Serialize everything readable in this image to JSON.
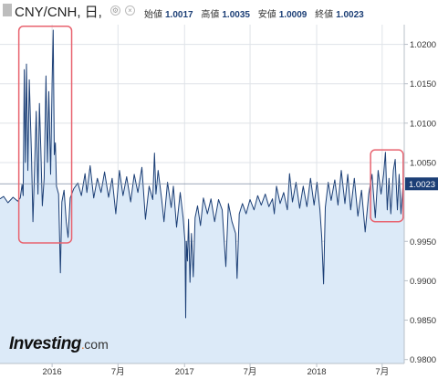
{
  "header": {
    "title": "CNY/CNH, 日,",
    "open_label": "始値",
    "open_value": "1.0017",
    "high_label": "高値",
    "high_value": "1.0035",
    "low_label": "安値",
    "low_value": "1.0009",
    "close_label": "終値",
    "close_value": "1.0023",
    "settings_glyph": "⚙",
    "close_glyph": "×"
  },
  "logo": {
    "brand": "Investing",
    "domain": "com"
  },
  "colors": {
    "line": "#1c3f76",
    "area": "#dceaf8",
    "highlight": "#e8636f",
    "grid": "#dfe3e8",
    "last_price_bg": "#1c3f76"
  },
  "chart_data": {
    "type": "area",
    "title": "CNY/CNH, 日,",
    "xlabel": "",
    "ylabel": "",
    "x_tick_labels": [
      "2016",
      "7月",
      "2017",
      "7月",
      "2018",
      "7月"
    ],
    "y_tick_labels": [
      "1.0200",
      "1.0150",
      "1.0100",
      "1.0050",
      "0.9950",
      "0.9900",
      "0.9850",
      "0.9800"
    ],
    "ylim": [
      0.9795,
      1.0225
    ],
    "xlim": [
      "2015-08-10",
      "2018-08-31"
    ],
    "last_price": "1.0023",
    "grid": true,
    "legend": "none",
    "series": [
      {
        "values": [
          [
            "2015-08-10",
            1.0004
          ],
          [
            "2015-08-20",
            1.0007
          ],
          [
            "2015-09-01",
            0.9999
          ],
          [
            "2015-09-15",
            1.0006
          ],
          [
            "2015-09-28",
            1.0001
          ],
          [
            "2015-10-05",
            1.0005
          ],
          [
            "2015-10-10",
            1.0022
          ],
          [
            "2015-10-13",
            1.0008
          ],
          [
            "2015-10-16",
            1.0168
          ],
          [
            "2015-10-19",
            1.005
          ],
          [
            "2015-10-22",
            1.0175
          ],
          [
            "2015-10-26",
            1.004
          ],
          [
            "2015-10-30",
            1.0155
          ],
          [
            "2015-11-05",
            1.006
          ],
          [
            "2015-11-09",
            0.9975
          ],
          [
            "2015-11-13",
            1.0035
          ],
          [
            "2015-11-18",
            1.0115
          ],
          [
            "2015-11-23",
            1.001
          ],
          [
            "2015-11-27",
            1.0125
          ],
          [
            "2015-12-01",
            1.0065
          ],
          [
            "2015-12-05",
            0.9995
          ],
          [
            "2015-12-10",
            1.003
          ],
          [
            "2015-12-15",
            1.016
          ],
          [
            "2015-12-19",
            1.005
          ],
          [
            "2015-12-23",
            1.014
          ],
          [
            "2015-12-28",
            1.0035
          ],
          [
            "2016-01-01",
            1.015
          ],
          [
            "2016-01-04",
            1.0218
          ],
          [
            "2016-01-07",
            1.006
          ],
          [
            "2016-01-10",
            1.0075
          ],
          [
            "2016-01-13",
            1.002
          ],
          [
            "2016-01-19",
            1.001
          ],
          [
            "2016-01-24",
            0.991
          ],
          [
            "2016-01-28",
            1.0
          ],
          [
            "2016-02-03",
            1.0015
          ],
          [
            "2016-02-09",
            0.9975
          ],
          [
            "2016-02-14",
            0.9955
          ],
          [
            "2016-02-20",
            1.0005
          ],
          [
            "2016-03-01",
            1.0017
          ],
          [
            "2016-03-12",
            1.0024
          ],
          [
            "2016-03-22",
            1.0008
          ],
          [
            "2016-04-01",
            1.0036
          ],
          [
            "2016-04-06",
            1.0012
          ],
          [
            "2016-04-15",
            1.0046
          ],
          [
            "2016-04-25",
            1.0005
          ],
          [
            "2016-05-05",
            1.003
          ],
          [
            "2016-05-15",
            1.0012
          ],
          [
            "2016-05-25",
            1.0038
          ],
          [
            "2016-06-05",
            1.0006
          ],
          [
            "2016-06-15",
            1.003
          ],
          [
            "2016-06-25",
            0.9985
          ],
          [
            "2016-07-05",
            1.004
          ],
          [
            "2016-07-15",
            1.0008
          ],
          [
            "2016-07-25",
            1.0032
          ],
          [
            "2016-08-05",
            1.0
          ],
          [
            "2016-08-15",
            1.0035
          ],
          [
            "2016-08-25",
            1.0012
          ],
          [
            "2016-09-05",
            1.0044
          ],
          [
            "2016-09-15",
            0.9978
          ],
          [
            "2016-09-25",
            1.002
          ],
          [
            "2016-10-05",
            1.0003
          ],
          [
            "2016-10-10",
            1.0062
          ],
          [
            "2016-10-14",
            1.001
          ],
          [
            "2016-10-20",
            1.004
          ],
          [
            "2016-10-30",
            1.0002
          ],
          [
            "2016-11-05",
            0.9975
          ],
          [
            "2016-11-15",
            1.0025
          ],
          [
            "2016-11-25",
            0.9993
          ],
          [
            "2016-12-01",
            1.002
          ],
          [
            "2016-12-10",
            0.9968
          ],
          [
            "2016-12-20",
            1.0012
          ],
          [
            "2016-12-28",
            0.998
          ],
          [
            "2017-01-02",
            0.995
          ],
          [
            "2017-01-04",
            0.9853
          ],
          [
            "2017-01-06",
            0.995
          ],
          [
            "2017-01-09",
            0.9925
          ],
          [
            "2017-01-12",
            0.9978
          ],
          [
            "2017-01-16",
            0.9898
          ],
          [
            "2017-01-20",
            0.996
          ],
          [
            "2017-01-25",
            0.9905
          ],
          [
            "2017-01-30",
            0.998
          ],
          [
            "2017-02-06",
            0.9995
          ],
          [
            "2017-02-14",
            0.997
          ],
          [
            "2017-02-22",
            1.0005
          ],
          [
            "2017-03-05",
            0.9985
          ],
          [
            "2017-03-15",
            1.0004
          ],
          [
            "2017-03-25",
            0.9975
          ],
          [
            "2017-04-05",
            1.0003
          ],
          [
            "2017-04-15",
            0.999
          ],
          [
            "2017-04-25",
            0.9918
          ],
          [
            "2017-05-02",
            0.9998
          ],
          [
            "2017-05-12",
            0.9975
          ],
          [
            "2017-05-22",
            0.996
          ],
          [
            "2017-05-26",
            0.9903
          ],
          [
            "2017-06-01",
            0.9985
          ],
          [
            "2017-06-10",
            0.9998
          ],
          [
            "2017-06-20",
            0.9985
          ],
          [
            "2017-07-01",
            1.0003
          ],
          [
            "2017-07-12",
            0.999
          ],
          [
            "2017-07-22",
            1.0008
          ],
          [
            "2017-08-01",
            0.9996
          ],
          [
            "2017-08-12",
            1.001
          ],
          [
            "2017-08-22",
            0.9994
          ],
          [
            "2017-09-01",
            1.0004
          ],
          [
            "2017-09-06",
            0.9985
          ],
          [
            "2017-09-12",
            1.002
          ],
          [
            "2017-09-22",
            0.9998
          ],
          [
            "2017-10-02",
            1.0012
          ],
          [
            "2017-10-12",
            0.999
          ],
          [
            "2017-10-18",
            1.0036
          ],
          [
            "2017-10-26",
            1.0
          ],
          [
            "2017-11-05",
            1.0025
          ],
          [
            "2017-11-15",
            0.9992
          ],
          [
            "2017-11-25",
            1.002
          ],
          [
            "2017-12-05",
            0.9994
          ],
          [
            "2017-12-15",
            1.003
          ],
          [
            "2017-12-25",
            0.9996
          ],
          [
            "2018-01-02",
            1.0025
          ],
          [
            "2018-01-10",
            0.999
          ],
          [
            "2018-01-15",
            0.9955
          ],
          [
            "2018-01-20",
            0.9896
          ],
          [
            "2018-01-25",
            0.9993
          ],
          [
            "2018-02-02",
            1.0025
          ],
          [
            "2018-02-10",
            1.0002
          ],
          [
            "2018-02-20",
            1.0028
          ],
          [
            "2018-03-01",
            0.9996
          ],
          [
            "2018-03-10",
            1.004
          ],
          [
            "2018-03-20",
            0.9998
          ],
          [
            "2018-03-28",
            1.0035
          ],
          [
            "2018-04-05",
            0.999
          ],
          [
            "2018-04-15",
            1.003
          ],
          [
            "2018-04-25",
            0.9982
          ],
          [
            "2018-05-05",
            1.0015
          ],
          [
            "2018-05-15",
            0.9962
          ],
          [
            "2018-05-25",
            1.001
          ],
          [
            "2018-06-03",
            1.0035
          ],
          [
            "2018-06-12",
            0.998
          ],
          [
            "2018-06-20",
            1.004
          ],
          [
            "2018-06-28",
            1.001
          ],
          [
            "2018-07-05",
            1.0035
          ],
          [
            "2018-07-10",
            1.0063
          ],
          [
            "2018-07-15",
            0.999
          ],
          [
            "2018-07-20",
            1.003
          ],
          [
            "2018-07-25",
            0.9985
          ],
          [
            "2018-08-01",
            1.004
          ],
          [
            "2018-08-06",
            1.0054
          ],
          [
            "2018-08-12",
            0.999
          ],
          [
            "2018-08-17",
            1.0035
          ],
          [
            "2018-08-22",
            0.9985
          ],
          [
            "2018-08-27",
            1.0017
          ],
          [
            "2018-08-31",
            1.0023
          ]
        ]
      }
    ],
    "highlight_boxes": [
      {
        "from": "2015-10-01",
        "to": "2016-02-24",
        "y_low": 0.9948,
        "y_high": 1.0223
      },
      {
        "from": "2018-05-30",
        "to": "2018-08-28",
        "y_low": 0.9975,
        "y_high": 1.0066
      }
    ]
  }
}
